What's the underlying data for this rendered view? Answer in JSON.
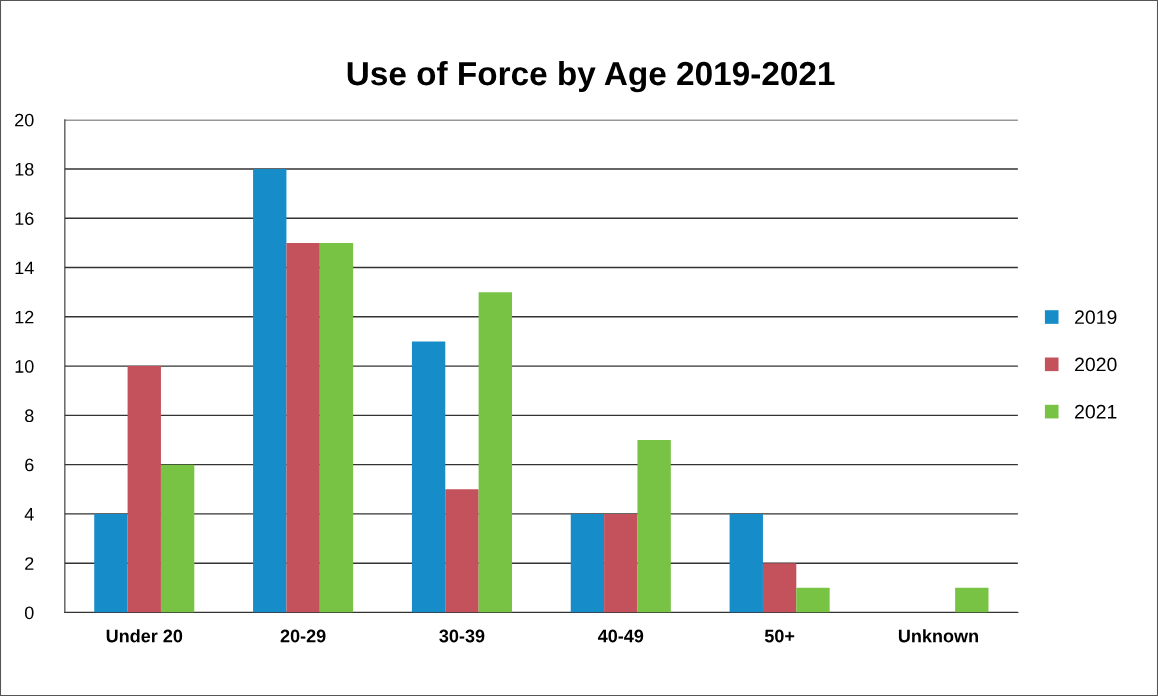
{
  "chart_data": {
    "type": "bar",
    "title": "Use of Force by Age 2019-2021",
    "categories": [
      "Under 20",
      "20-29",
      "30-39",
      "40-49",
      "50+",
      "Unknown"
    ],
    "series": [
      {
        "name": "2019",
        "color": "#168cc8",
        "values": [
          4,
          18,
          11,
          4,
          4,
          0
        ]
      },
      {
        "name": "2020",
        "color": "#c4525c",
        "values": [
          10,
          15,
          5,
          4,
          2,
          0
        ]
      },
      {
        "name": "2021",
        "color": "#78c244",
        "values": [
          6,
          15,
          13,
          7,
          1,
          1
        ]
      }
    ],
    "ylim": [
      0,
      20
    ],
    "yticks": [
      0,
      2,
      4,
      6,
      8,
      10,
      12,
      14,
      16,
      18,
      20
    ],
    "grid": "y",
    "legend": "right"
  }
}
